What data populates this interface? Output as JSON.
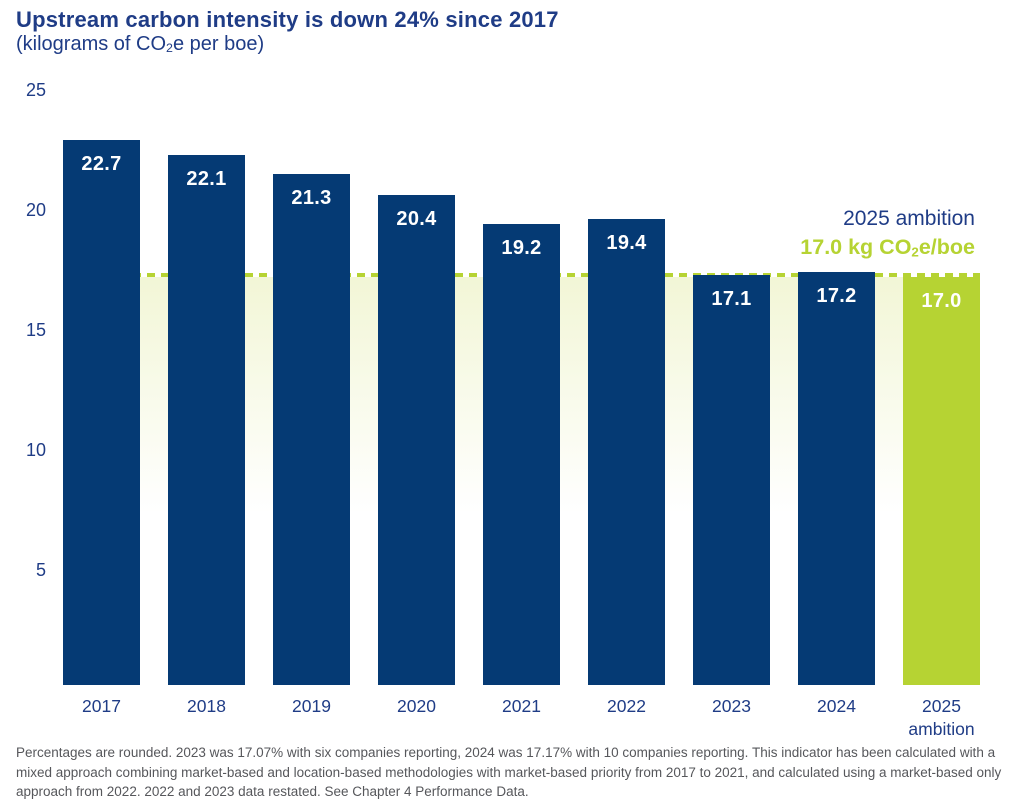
{
  "header": {
    "title": "Upstream carbon intensity is down 24% since 2017",
    "subtitle_pre": "(kilograms of CO",
    "subtitle_sub": "2",
    "subtitle_post": "e per boe)"
  },
  "annotation": {
    "line1": "2025 ambition",
    "line2_pre": "17.0 kg CO",
    "line2_sub": "2",
    "line2_post": "e/boe"
  },
  "footnote": "Percentages are rounded. 2023 was 17.07% with six companies reporting, 2024 was 17.17% with 10 companies reporting. This indicator has been calculated with a mixed approach combining market-based and location-based methodologies with market-based priority from 2017 to 2021, and calculated using a market-based only approach from 2022. 2022 and 2023 data restated. See Chapter 4 Performance Data.",
  "colors": {
    "navy_text": "#1f3c86",
    "navy_bar": "#053a74",
    "lime": "#b6d333",
    "band_tint": "#f2f6d6",
    "footnote_gray": "#56575b",
    "bar_label": "#ffffff"
  },
  "chart_data": {
    "type": "bar",
    "title": "Upstream carbon intensity is down 24% since 2017",
    "ylabel": "kilograms of CO2e per boe",
    "xlabel": "",
    "categories": [
      "2017",
      "2018",
      "2019",
      "2020",
      "2021",
      "2022",
      "2023",
      "2024",
      "2025\nambition"
    ],
    "values": [
      22.7,
      22.1,
      21.3,
      20.4,
      19.2,
      19.4,
      17.1,
      17.2,
      17.0
    ],
    "value_labels": [
      "22.7",
      "22.1",
      "21.3",
      "20.4",
      "19.2",
      "19.4",
      "17.1",
      "17.2",
      "17.0"
    ],
    "bar_roles": [
      "actual",
      "actual",
      "actual",
      "actual",
      "actual",
      "actual",
      "actual",
      "actual",
      "ambition"
    ],
    "ambition_line": 17.0,
    "yticks": [
      25,
      20,
      15,
      10,
      5
    ],
    "ylim": [
      0,
      25
    ],
    "grid": false,
    "legend_position": "none"
  }
}
